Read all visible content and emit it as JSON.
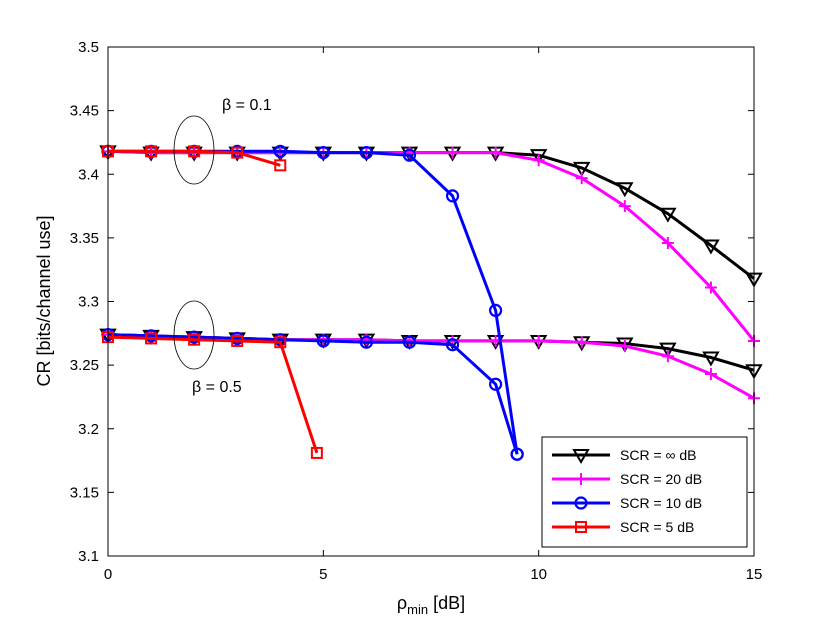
{
  "chart_data": {
    "type": "line",
    "xlabel_main": "ρ",
    "xlabel_sub": "min",
    "xlabel_unit": "[dB]",
    "ylabel": "CR [bits/channel use]",
    "xlim": [
      0,
      15
    ],
    "ylim": [
      3.1,
      3.5
    ],
    "xticks": [
      0,
      5,
      10,
      15
    ],
    "yticks": [
      3.1,
      3.15,
      3.2,
      3.25,
      3.3,
      3.35,
      3.4,
      3.45,
      3.5
    ],
    "grid": false,
    "legend_position": "bottom-right",
    "annotations": [
      {
        "text": "β = 0.1",
        "x": 2,
        "y": 3.418
      },
      {
        "text": "β = 0.5",
        "x": 2,
        "y": 3.271
      }
    ],
    "series": [
      {
        "name": "SCR = ∞ dB",
        "color": "#000000",
        "marker": "triangle-down",
        "curves": [
          {
            "x": [
              0,
              1,
              2,
              3,
              4,
              5,
              6,
              7,
              8,
              9,
              10,
              11,
              12,
              13,
              14,
              15
            ],
            "y": [
              3.418,
              3.417,
              3.417,
              3.417,
              3.417,
              3.417,
              3.417,
              3.417,
              3.417,
              3.417,
              3.415,
              3.405,
              3.389,
              3.369,
              3.344,
              3.318
            ]
          },
          {
            "x": [
              0,
              1,
              2,
              3,
              4,
              5,
              6,
              7,
              8,
              9,
              10,
              11,
              12,
              13,
              14,
              15
            ],
            "y": [
              3.274,
              3.273,
              3.272,
              3.271,
              3.27,
              3.27,
              3.27,
              3.269,
              3.269,
              3.269,
              3.269,
              3.268,
              3.267,
              3.263,
              3.256,
              3.246
            ]
          }
        ]
      },
      {
        "name": "SCR = 20 dB",
        "color": "#ff00ff",
        "marker": "plus",
        "curves": [
          {
            "x": [
              0,
              1,
              2,
              3,
              4,
              5,
              6,
              7,
              8,
              9,
              10,
              11,
              12,
              13,
              14,
              15
            ],
            "y": [
              3.418,
              3.417,
              3.417,
              3.417,
              3.417,
              3.417,
              3.417,
              3.417,
              3.417,
              3.417,
              3.411,
              3.397,
              3.375,
              3.346,
              3.311,
              3.269
            ]
          },
          {
            "x": [
              0,
              1,
              2,
              3,
              4,
              5,
              6,
              7,
              8,
              9,
              10,
              11,
              12,
              13,
              14,
              15
            ],
            "y": [
              3.274,
              3.273,
              3.272,
              3.271,
              3.27,
              3.27,
              3.27,
              3.269,
              3.269,
              3.269,
              3.269,
              3.268,
              3.265,
              3.257,
              3.243,
              3.224
            ]
          }
        ]
      },
      {
        "name": "SCR = 10 dB",
        "color": "#0000ff",
        "marker": "circle",
        "curves": [
          {
            "x": [
              0,
              1,
              2,
              3,
              4,
              5,
              6,
              7,
              8,
              9,
              9.5
            ],
            "y": [
              3.418,
              3.418,
              3.418,
              3.418,
              3.418,
              3.417,
              3.417,
              3.415,
              3.383,
              3.293,
              3.18
            ]
          },
          {
            "x": [
              0,
              1,
              2,
              3,
              4,
              5,
              6,
              7,
              8,
              9,
              9.5
            ],
            "y": [
              3.274,
              3.273,
              3.272,
              3.271,
              3.27,
              3.269,
              3.268,
              3.268,
              3.266,
              3.235,
              3.18
            ]
          }
        ]
      },
      {
        "name": "SCR = 5 dB",
        "color": "#ff0000",
        "marker": "square",
        "curves": [
          {
            "x": [
              0,
              1,
              2,
              3,
              4
            ],
            "y": [
              3.418,
              3.418,
              3.418,
              3.417,
              3.407
            ]
          },
          {
            "x": [
              0,
              1,
              2,
              3,
              4,
              4.85
            ],
            "y": [
              3.272,
              3.271,
              3.27,
              3.269,
              3.268,
              3.181
            ]
          }
        ]
      }
    ]
  }
}
